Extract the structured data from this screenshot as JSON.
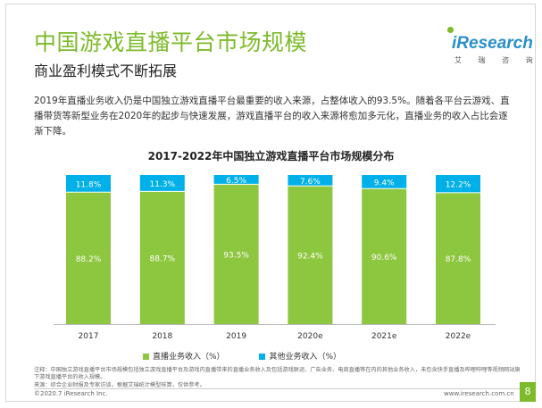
{
  "title": "中国游戏直播平台市场规模",
  "subtitle": "商业盈利模式不断拓展",
  "logo": {
    "text": "iResearch",
    "chinese": "艾 瑞 咨 询"
  },
  "paragraph": "2019年直播业务收入仍是中国独立游戏直播平台最重要的收入来源，占整体收入的93.5%。随着各平台云游戏、直播带货等新型业务在2020年的起步与快速发展，游戏直播平台的收入来源将愈加多元化，直播业务的收入占比会逐渐下降。",
  "note": "注释：中国独立游戏直播平台市场规模包括独立游戏直播平台及游戏内直播带来的直播业务收入及包括游戏联运、广告业务、电商直播等在内的其他业务收入，未包含快手直播及哔哩哔哩等视频网站旗下游戏直播平台的收入规模。\n来源：综合企业财报及专家访谈，根据艾瑞统计模型核算，仅供参考。",
  "footer": {
    "left": "©2020.7 iResearch Inc.",
    "right": "www.iresearch.com.cn",
    "page": "8"
  },
  "colors": {
    "title_green": "#7dbb2b",
    "live": "#8dc63f",
    "other": "#00b0e8",
    "logo_blue": "#2a8fc9"
  },
  "chart_data": {
    "type": "bar",
    "stacked": "percent",
    "title": "2017-2022年中国独立游戏直播平台市场规模分布",
    "categories": [
      "2017",
      "2018",
      "2019",
      "2020e",
      "2021e",
      "2022e"
    ],
    "series": [
      {
        "name": "直播业务收入（%）",
        "values": [
          88.2,
          88.7,
          93.5,
          92.4,
          90.6,
          87.8
        ],
        "labels": [
          "88.2%",
          "88.7%",
          "93.5%",
          "92.4%",
          "90.6%",
          "87.8%"
        ],
        "color": "#8dc63f"
      },
      {
        "name": "其他业务收入（%）",
        "values": [
          11.8,
          11.3,
          6.5,
          7.6,
          9.4,
          12.2
        ],
        "labels": [
          "11.8%",
          "11.3%",
          "6.5%",
          "7.6%",
          "9.4%",
          "12.2%"
        ],
        "color": "#00b0e8"
      }
    ],
    "ylim": [
      0,
      100
    ],
    "legend": "bottom"
  }
}
